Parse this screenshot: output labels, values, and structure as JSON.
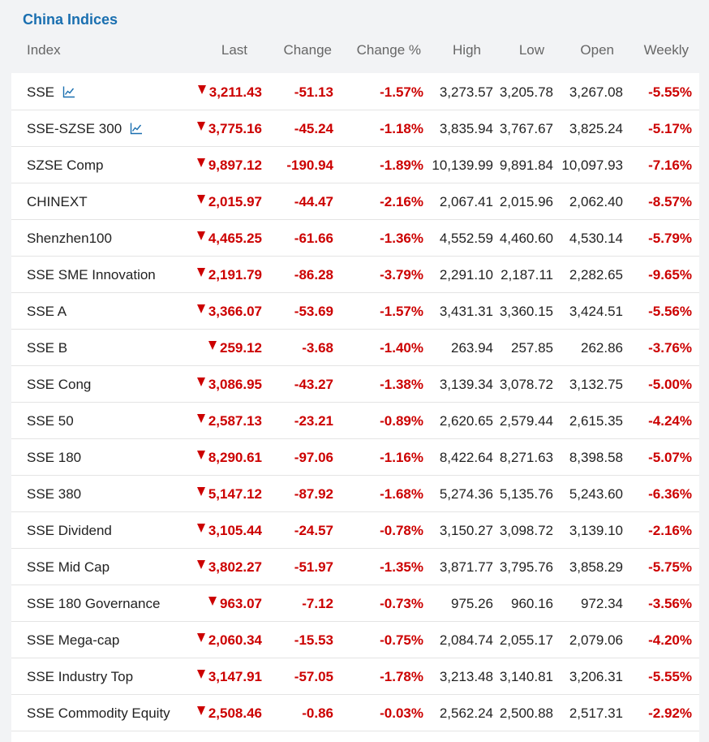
{
  "title": "China Indices",
  "headers": {
    "index": "Index",
    "last": "Last",
    "change": "Change",
    "change_pct": "Change %",
    "high": "High",
    "low": "Low",
    "open": "Open",
    "weekly": "Weekly"
  },
  "colors": {
    "title": "#1a6fb0",
    "negative": "#cc0000",
    "icon": "#1a6fb0"
  },
  "rows": [
    {
      "name": "SSE",
      "chart_icon": true,
      "last": "3,211.43",
      "change": "-51.13",
      "change_pct": "-1.57%",
      "high": "3,273.57",
      "low": "3,205.78",
      "open": "3,267.08",
      "weekly": "-5.55%"
    },
    {
      "name": "SSE-SZSE 300",
      "chart_icon": true,
      "last": "3,775.16",
      "change": "-45.24",
      "change_pct": "-1.18%",
      "high": "3,835.94",
      "low": "3,767.67",
      "open": "3,825.24",
      "weekly": "-5.17%"
    },
    {
      "name": "SZSE Comp",
      "chart_icon": false,
      "last": "9,897.12",
      "change": "-190.94",
      "change_pct": "-1.89%",
      "high": "10,139.99",
      "low": "9,891.84",
      "open": "10,097.93",
      "weekly": "-7.16%"
    },
    {
      "name": "CHINEXT",
      "chart_icon": false,
      "last": "2,015.97",
      "change": "-44.47",
      "change_pct": "-2.16%",
      "high": "2,067.41",
      "low": "2,015.96",
      "open": "2,062.40",
      "weekly": "-8.57%"
    },
    {
      "name": "Shenzhen100",
      "chart_icon": false,
      "last": "4,465.25",
      "change": "-61.66",
      "change_pct": "-1.36%",
      "high": "4,552.59",
      "low": "4,460.60",
      "open": "4,530.14",
      "weekly": "-5.79%"
    },
    {
      "name": "SSE SME Innovation",
      "chart_icon": false,
      "last": "2,191.79",
      "change": "-86.28",
      "change_pct": "-3.79%",
      "high": "2,291.10",
      "low": "2,187.11",
      "open": "2,282.65",
      "weekly": "-9.65%"
    },
    {
      "name": "SSE A",
      "chart_icon": false,
      "last": "3,366.07",
      "change": "-53.69",
      "change_pct": "-1.57%",
      "high": "3,431.31",
      "low": "3,360.15",
      "open": "3,424.51",
      "weekly": "-5.56%"
    },
    {
      "name": "SSE B",
      "chart_icon": false,
      "last": "259.12",
      "change": "-3.68",
      "change_pct": "-1.40%",
      "high": "263.94",
      "low": "257.85",
      "open": "262.86",
      "weekly": "-3.76%"
    },
    {
      "name": "SSE Cong",
      "chart_icon": false,
      "last": "3,086.95",
      "change": "-43.27",
      "change_pct": "-1.38%",
      "high": "3,139.34",
      "low": "3,078.72",
      "open": "3,132.75",
      "weekly": "-5.00%"
    },
    {
      "name": "SSE 50",
      "chart_icon": false,
      "last": "2,587.13",
      "change": "-23.21",
      "change_pct": "-0.89%",
      "high": "2,620.65",
      "low": "2,579.44",
      "open": "2,615.35",
      "weekly": "-4.24%"
    },
    {
      "name": "SSE 180",
      "chart_icon": false,
      "last": "8,290.61",
      "change": "-97.06",
      "change_pct": "-1.16%",
      "high": "8,422.64",
      "low": "8,271.63",
      "open": "8,398.58",
      "weekly": "-5.07%"
    },
    {
      "name": "SSE 380",
      "chart_icon": false,
      "last": "5,147.12",
      "change": "-87.92",
      "change_pct": "-1.68%",
      "high": "5,274.36",
      "low": "5,135.76",
      "open": "5,243.60",
      "weekly": "-6.36%"
    },
    {
      "name": "SSE Dividend",
      "chart_icon": false,
      "last": "3,105.44",
      "change": "-24.57",
      "change_pct": "-0.78%",
      "high": "3,150.27",
      "low": "3,098.72",
      "open": "3,139.10",
      "weekly": "-2.16%"
    },
    {
      "name": "SSE Mid Cap",
      "chart_icon": false,
      "last": "3,802.27",
      "change": "-51.97",
      "change_pct": "-1.35%",
      "high": "3,871.77",
      "low": "3,795.76",
      "open": "3,858.29",
      "weekly": "-5.75%"
    },
    {
      "name": "SSE 180 Governance",
      "chart_icon": false,
      "last": "963.07",
      "change": "-7.12",
      "change_pct": "-0.73%",
      "high": "975.26",
      "low": "960.16",
      "open": "972.34",
      "weekly": "-3.56%"
    },
    {
      "name": "SSE Mega-cap",
      "chart_icon": false,
      "last": "2,060.34",
      "change": "-15.53",
      "change_pct": "-0.75%",
      "high": "2,084.74",
      "low": "2,055.17",
      "open": "2,079.06",
      "weekly": "-4.20%"
    },
    {
      "name": "SSE Industry Top",
      "chart_icon": false,
      "last": "3,147.91",
      "change": "-57.05",
      "change_pct": "-1.78%",
      "high": "3,213.48",
      "low": "3,140.81",
      "open": "3,206.31",
      "weekly": "-5.55%"
    },
    {
      "name": "SSE Commodity Equity",
      "chart_icon": false,
      "last": "2,508.46",
      "change": "-0.86",
      "change_pct": "-0.03%",
      "high": "2,562.24",
      "low": "2,500.88",
      "open": "2,517.31",
      "weekly": "-2.92%"
    }
  ]
}
